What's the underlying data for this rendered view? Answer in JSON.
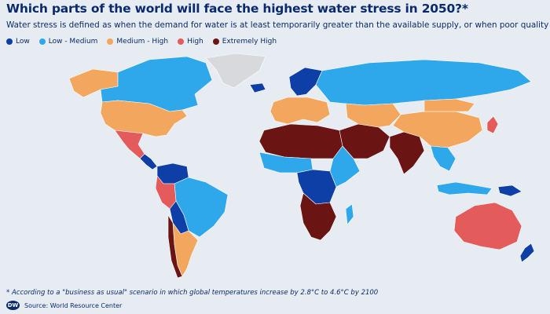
{
  "header": {
    "title": "Which parts of the world will face the highest water stress in 2050?*",
    "subtitle": "Water stress is defined as when the demand for water is at least temporarily greater than the available supply, or when poor quality limits use"
  },
  "legend": [
    {
      "label": "Low",
      "color": "#0e3fa6"
    },
    {
      "label": "Low - Medium",
      "color": "#2ea8ea"
    },
    {
      "label": "Medium - High",
      "color": "#f2a65e"
    },
    {
      "label": "High",
      "color": "#e45b5b"
    },
    {
      "label": "Extremely High",
      "color": "#6b1414"
    }
  ],
  "map": {
    "no_data_color": "#d7d9dc",
    "regions": {
      "greenland": "no-data",
      "alaska": "Medium - High",
      "canada": "Low - Medium",
      "usa": "Medium - High",
      "mexico": "High",
      "central_america": "Low",
      "colombia_venezuela": "Low",
      "brazil": "Low - Medium",
      "peru": "High",
      "bolivia_paraguay": "Low",
      "argentina": "Medium - High",
      "chile": "Extremely High",
      "iceland": "Low",
      "scandinavia": "Low",
      "western_europe": "Medium - High",
      "russia": "Low - Medium",
      "north_africa": "Extremely High",
      "west_africa": "Low - Medium",
      "central_africa": "Low",
      "east_africa": "Low - Medium",
      "southern_africa": "Extremely High",
      "madagascar": "Low - Medium",
      "middle_east": "Extremely High",
      "central_asia": "Medium - High",
      "india": "Extremely High",
      "china": "Medium - High",
      "mongolia": "Medium - High",
      "southeast_asia": "Low - Medium",
      "indonesia": "Low - Medium",
      "papua": "Low",
      "australia": "High",
      "new_zealand": "Low",
      "japan": "High"
    }
  },
  "footnote": "* According to a \"business as usual\" scenario in which global temperatures increase by 2.8°C to 4.6°C by 2100",
  "source": {
    "logo_text": "DW",
    "text": "Source: World Resource Center"
  }
}
